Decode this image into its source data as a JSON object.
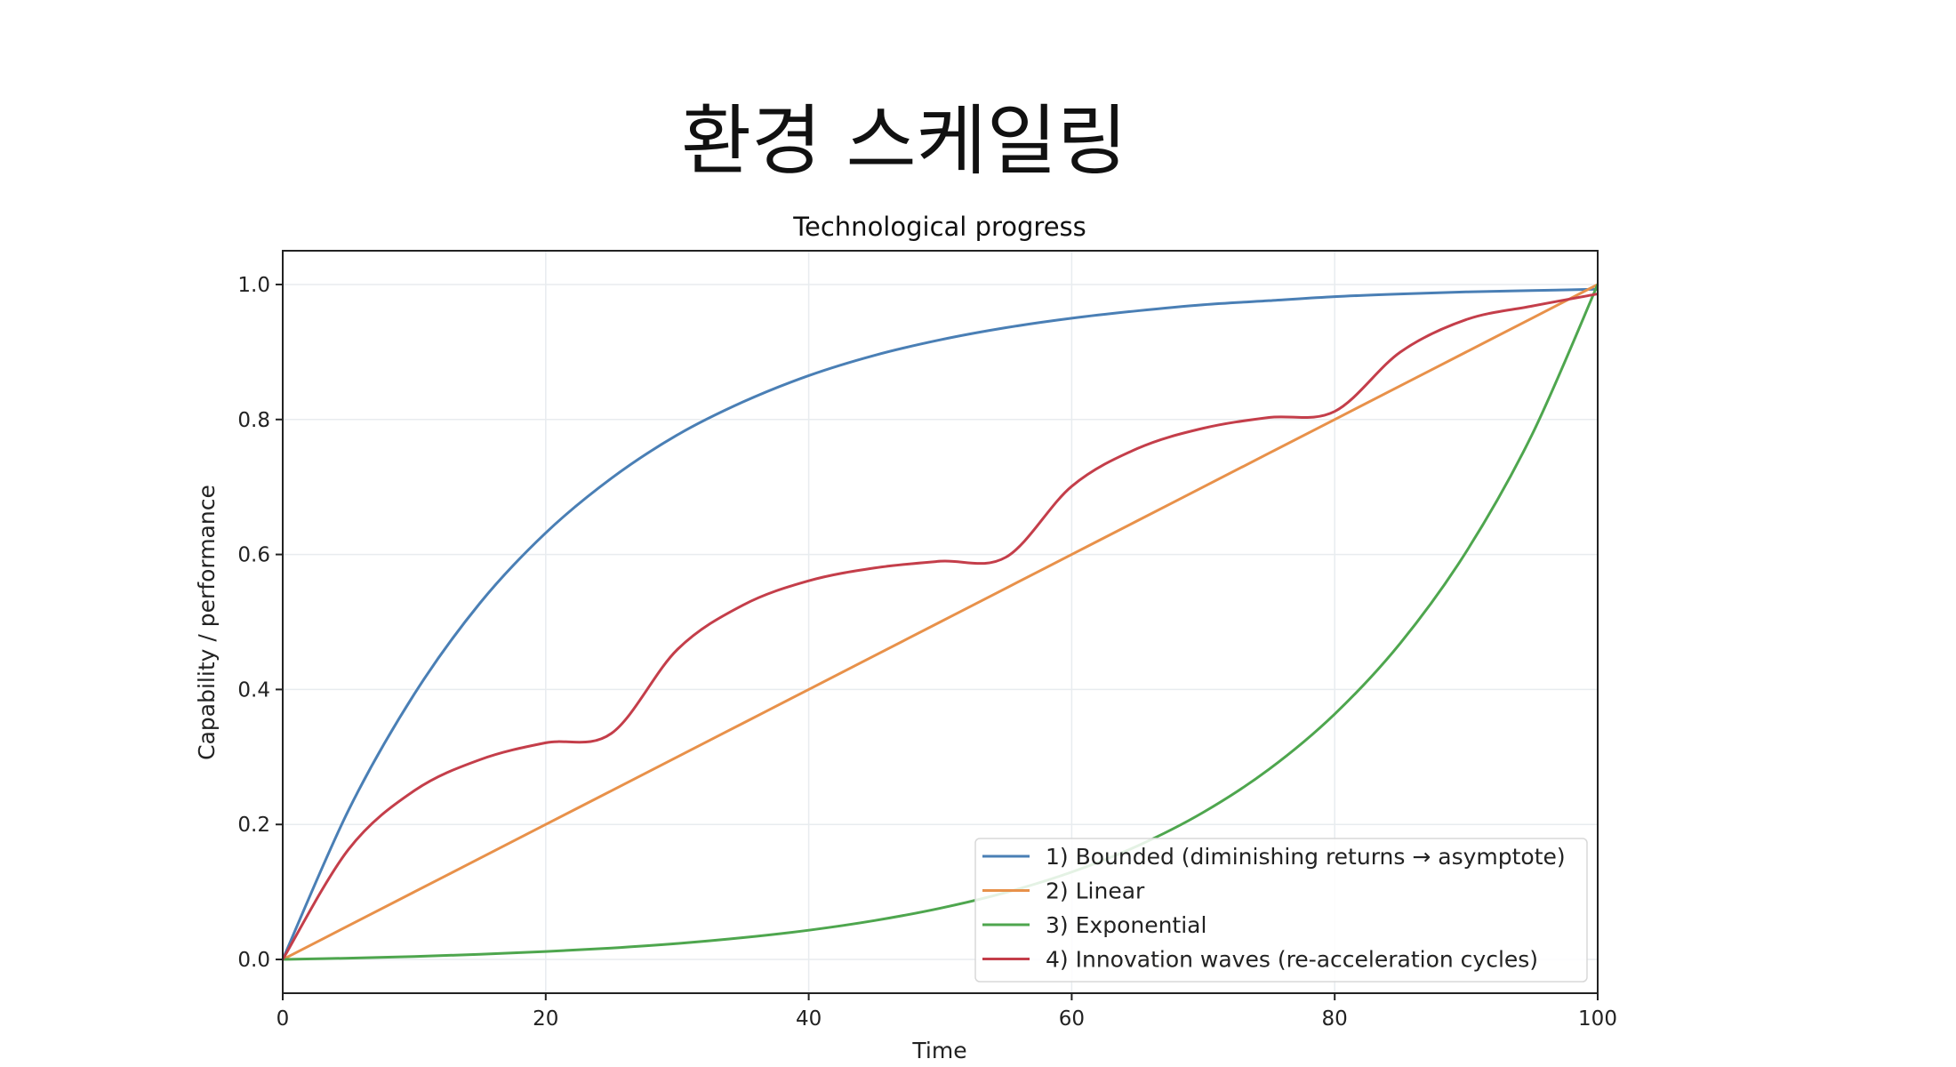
{
  "slide": {
    "title": "환경 스케일링"
  },
  "chart_data": {
    "type": "line",
    "title": "Technological progress",
    "xlabel": "Time",
    "ylabel": "Capability / performance",
    "xlim": [
      0,
      100
    ],
    "ylim": [
      -0.05,
      1.05
    ],
    "xticks": [
      "0",
      "20",
      "40",
      "60",
      "80",
      "100"
    ],
    "yticks": [
      "0.0",
      "0.2",
      "0.4",
      "0.6",
      "0.8",
      "1.0"
    ],
    "grid": true,
    "legend_position": "lower-right",
    "x": [
      0,
      5,
      10,
      15,
      20,
      25,
      30,
      35,
      40,
      45,
      50,
      55,
      60,
      65,
      70,
      75,
      80,
      85,
      90,
      95,
      100
    ],
    "series": [
      {
        "name": "1) Bounded (diminishing returns → asymptote)",
        "color": "#4a7fb5",
        "values": [
          0,
          0.221,
          0.393,
          0.528,
          0.632,
          0.713,
          0.777,
          0.826,
          0.865,
          0.895,
          0.918,
          0.936,
          0.95,
          0.961,
          0.97,
          0.976,
          0.982,
          0.986,
          0.989,
          0.991,
          0.993
        ]
      },
      {
        "name": "2) Linear",
        "color": "#e8914a",
        "values": [
          0,
          0.05,
          0.1,
          0.15,
          0.2,
          0.25,
          0.3,
          0.35,
          0.4,
          0.45,
          0.5,
          0.55,
          0.6,
          0.65,
          0.7,
          0.75,
          0.8,
          0.85,
          0.9,
          0.95,
          1.0
        ]
      },
      {
        "name": "3) Exponential",
        "color": "#4ea64e",
        "values": [
          0,
          0.0019,
          0.0044,
          0.0076,
          0.0117,
          0.0169,
          0.0236,
          0.0323,
          0.0433,
          0.0576,
          0.0759,
          0.0993,
          0.1295,
          0.1682,
          0.2179,
          0.2817,
          0.3636,
          0.4688,
          0.6039,
          0.7773,
          1.0
        ]
      },
      {
        "name": "4) Innovation waves (re-acceleration cycles)",
        "color": "#c43e4a",
        "values": [
          0,
          0.163,
          0.25,
          0.296,
          0.321,
          0.335,
          0.459,
          0.525,
          0.561,
          0.58,
          0.59,
          0.596,
          0.701,
          0.757,
          0.787,
          0.803,
          0.812,
          0.9,
          0.948,
          0.968,
          0.986
        ]
      }
    ]
  }
}
